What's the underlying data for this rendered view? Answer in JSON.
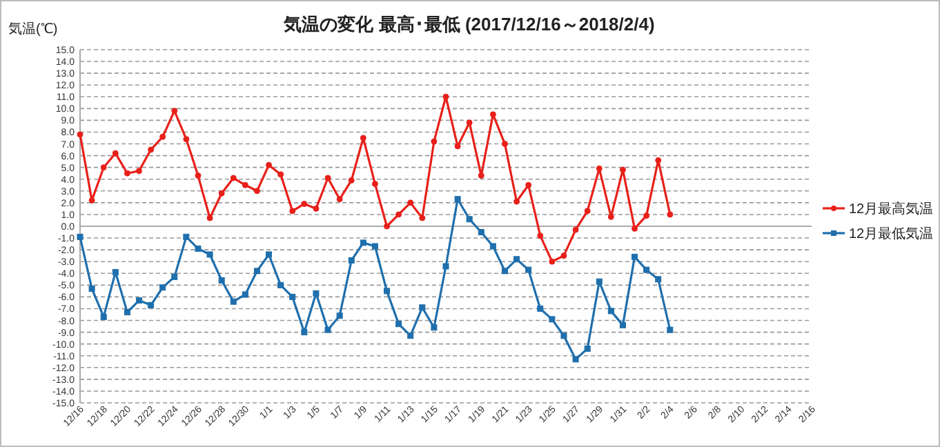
{
  "chart_data": {
    "type": "line",
    "title": "気温の変化  最高･最低  (2017/12/16～2018/2/4)",
    "ylabel": "気温(℃)",
    "categories": [
      "12/16",
      null,
      "12/18",
      null,
      "12/20",
      null,
      "12/22",
      null,
      "12/24",
      null,
      "12/26",
      null,
      "12/28",
      null,
      "12/30",
      null,
      "1/1",
      null,
      "1/3",
      null,
      "1/5",
      null,
      "1/7",
      null,
      "1/9",
      null,
      "1/11",
      null,
      "1/13",
      null,
      "1/15",
      null,
      "1/17",
      null,
      "1/19",
      null,
      "1/21",
      null,
      "1/23",
      null,
      "1/25",
      null,
      "1/27",
      null,
      "1/29",
      null,
      "1/31",
      null,
      "2/2",
      null,
      "2/4",
      null,
      "2/6",
      null,
      "2/8",
      null,
      "2/10",
      null,
      "2/12",
      null,
      "2/14",
      null,
      "2/16"
    ],
    "series": [
      {
        "name": "12月最高気温",
        "color": "#e8201a",
        "marker": "circle",
        "values": [
          7.8,
          2.2,
          5.0,
          6.2,
          4.5,
          4.7,
          6.5,
          7.6,
          9.8,
          7.4,
          4.3,
          0.7,
          2.8,
          4.1,
          3.5,
          3.0,
          5.2,
          4.4,
          1.3,
          1.9,
          1.5,
          4.1,
          2.3,
          3.9,
          7.5,
          3.6,
          0.0,
          1.0,
          2.0,
          0.7,
          7.2,
          11.0,
          6.8,
          8.8,
          4.3,
          9.5,
          7.0,
          2.1,
          3.5,
          -0.8,
          -3.0,
          -2.5,
          -0.3,
          1.3,
          4.9,
          0.8,
          4.8,
          -0.2,
          0.9,
          5.6,
          1.0,
          null,
          null,
          null,
          null,
          null,
          null,
          null,
          null,
          null,
          null,
          null,
          null
        ]
      },
      {
        "name": "12月最低気温",
        "color": "#1f6fad",
        "marker": "square",
        "values": [
          -0.9,
          -5.3,
          -7.7,
          -3.9,
          -7.3,
          -6.3,
          -6.7,
          -5.2,
          -4.3,
          -0.9,
          -1.9,
          -2.4,
          -4.6,
          -6.4,
          -5.8,
          -3.8,
          -2.4,
          -5.0,
          -6.0,
          -9.0,
          -5.7,
          -8.8,
          -7.6,
          -2.9,
          -1.4,
          -1.7,
          -5.5,
          -8.3,
          -9.3,
          -6.9,
          -8.6,
          -3.4,
          2.3,
          0.6,
          -0.5,
          -1.7,
          -3.8,
          -2.8,
          -3.7,
          -7.0,
          -7.9,
          -9.3,
          -11.3,
          -10.4,
          -4.7,
          -7.2,
          -8.4,
          -2.6,
          -3.7,
          -4.5,
          -8.8,
          null,
          null,
          null,
          null,
          null,
          null,
          null,
          null,
          null,
          null,
          null,
          null
        ]
      }
    ],
    "ylim": [
      -15,
      15
    ],
    "yticks": [
      {
        "value": -15,
        "label": "-15.0"
      },
      {
        "value": -14,
        "label": "-14.0"
      },
      {
        "value": -13,
        "label": "-13.0"
      },
      {
        "value": -12,
        "label": "-12.0"
      },
      {
        "value": -11,
        "label": "-11.0"
      },
      {
        "value": -10,
        "label": "-10.0"
      },
      {
        "value": -9,
        "label": "-9.0"
      },
      {
        "value": -8,
        "label": "-8.0"
      },
      {
        "value": -7,
        "label": "-7.0"
      },
      {
        "value": -6,
        "label": "-6.0"
      },
      {
        "value": -5,
        "label": "-5.0"
      },
      {
        "value": -4,
        "label": "-4.0"
      },
      {
        "value": -3,
        "label": "-3.0"
      },
      {
        "value": -2,
        "label": "-2.0"
      },
      {
        "value": -1,
        "label": "-1.0"
      },
      {
        "value": 0,
        "label": "0.0"
      },
      {
        "value": 1,
        "label": "1.0"
      },
      {
        "value": 2,
        "label": "2.0"
      },
      {
        "value": 3,
        "label": "3.0"
      },
      {
        "value": 4,
        "label": "4.0"
      },
      {
        "value": 5,
        "label": "5.0"
      },
      {
        "value": 6,
        "label": "6.0"
      },
      {
        "value": 7,
        "label": "7.0"
      },
      {
        "value": 8,
        "label": "8.0"
      },
      {
        "value": 9,
        "label": "9.0"
      },
      {
        "value": 10,
        "label": "10.0"
      },
      {
        "value": 11,
        "label": "11.0"
      },
      {
        "value": 12,
        "label": "12.0"
      },
      {
        "value": 13,
        "label": "13.0"
      },
      {
        "value": 14,
        "label": "14.0"
      },
      {
        "value": 15,
        "label": "15.0"
      }
    ],
    "grid": "y",
    "legend": "right",
    "line_style": "solid"
  }
}
